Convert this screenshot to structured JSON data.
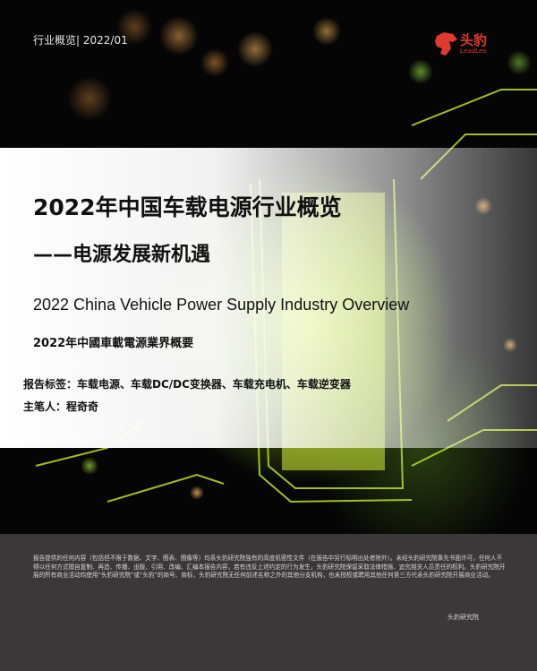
{
  "header": {
    "category": "行业概览|",
    "date": "2022/01"
  },
  "logo": {
    "name_cn": "头豹",
    "name_en": "LeadLeo",
    "color": "#e03a2f"
  },
  "title": {
    "main": "2022年中国车载电源行业概览",
    "sub": "——电源发展新机遇",
    "english": "2022 China Vehicle Power Supply Industry Overview",
    "traditional": "2022年中國車載電源業界概要"
  },
  "tags": {
    "label": "报告标签：",
    "value": "车载电源、车载DC/DC变换器、车载充电机、车载逆变器"
  },
  "author": {
    "label": "主笔人：",
    "value": "程奇奇"
  },
  "footer": {
    "disclaimer": "报告提供的任何内容（包括但不限于数据、文字、图表、图像等）均系头豹研究院独有的高度机密性文件（在报告中另行标明出处者除外）。未经头豹研究院事先书面许可，任何人不得以任何方式擅自复制、再造、传播、出版、引用、改编、汇编本报告内容，若有违反上述约定的行为发生，头豹研究院保留采取法律措施、追究相关人员责任的权利。头豹研究院开展的所有商业活动均使用“头豹研究院”或“头豹”的商号、商标，头豹研究院无任何前述名称之外的其他分支机构，也未授权或聘用其他任何第三方代表头豹研究院开展商业活动。",
    "institute": "头豹研究院",
    "background": "#3a3838"
  }
}
